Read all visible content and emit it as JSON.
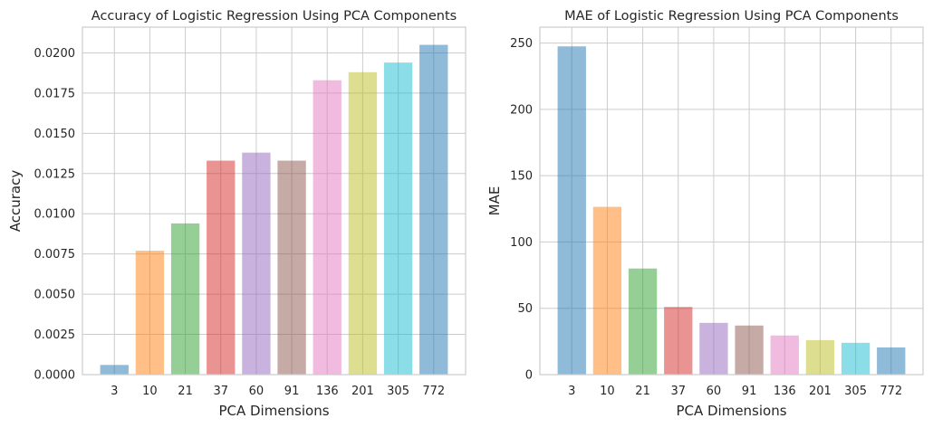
{
  "chart_data": [
    {
      "type": "bar",
      "title": "Accuracy of Logistic Regression Using PCA Components",
      "xlabel": "PCA Dimensions",
      "ylabel": "Accuracy",
      "categories": [
        "3",
        "10",
        "21",
        "37",
        "60",
        "91",
        "136",
        "201",
        "305",
        "772"
      ],
      "values": [
        0.0006,
        0.0077,
        0.0094,
        0.0133,
        0.0138,
        0.0133,
        0.0183,
        0.0188,
        0.0194,
        0.0205
      ],
      "ylim": [
        0,
        0.0216
      ],
      "yticks": [
        "0.0000",
        "0.0025",
        "0.0050",
        "0.0075",
        "0.0100",
        "0.0125",
        "0.0150",
        "0.0175",
        "0.0200"
      ],
      "grid": true
    },
    {
      "type": "bar",
      "title": "MAE of Logistic Regression Using PCA Components",
      "xlabel": "PCA Dimensions",
      "ylabel": "MAE",
      "categories": [
        "3",
        "10",
        "21",
        "37",
        "60",
        "91",
        "136",
        "201",
        "305",
        "772"
      ],
      "values": [
        247.5,
        126.5,
        80,
        51,
        39,
        37,
        29.5,
        26,
        24,
        20.5
      ],
      "ylim": [
        0,
        262
      ],
      "yticks": [
        "0",
        "50",
        "100",
        "150",
        "200",
        "250"
      ],
      "grid": true
    }
  ],
  "colors": [
    "#1f77b4",
    "#ff7f0e",
    "#2ca02c",
    "#d62728",
    "#9467bd",
    "#8c564b",
    "#e377c2",
    "#bcbd22",
    "#17becf",
    "#1f77b4"
  ]
}
